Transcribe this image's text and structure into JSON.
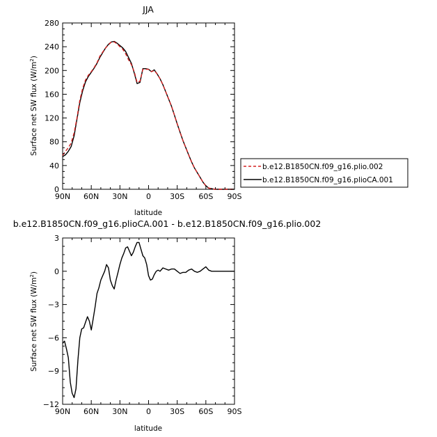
{
  "chart_data": [
    {
      "type": "line",
      "title": "JJA",
      "xlabel": "latitude",
      "ylabel": "Surface net SW flux (W/m",
      "ylabel_sup": "2",
      "ylabel_close": ")",
      "x": [
        90,
        87,
        84,
        81,
        78,
        75,
        72,
        69,
        66,
        63,
        60,
        57,
        54,
        51,
        48,
        45,
        42,
        39,
        36,
        33,
        30,
        27,
        24,
        21,
        18,
        15,
        12,
        9,
        6,
        3,
        0,
        -3,
        -6,
        -9,
        -12,
        -15,
        -18,
        -21,
        -24,
        -27,
        -30,
        -33,
        -36,
        -39,
        -42,
        -45,
        -48,
        -51,
        -54,
        -57,
        -60,
        -63,
        -66,
        -69,
        -72,
        -75,
        -78,
        -81,
        -84,
        -87,
        -90
      ],
      "xlim": [
        90,
        -90
      ],
      "xticks": [
        90,
        60,
        30,
        0,
        -30,
        -60,
        -90
      ],
      "xticklabels": [
        "90N",
        "60N",
        "30N",
        "0",
        "30S",
        "60S",
        "90S"
      ],
      "ylim": [
        0,
        280
      ],
      "yticks": [
        0,
        40,
        80,
        120,
        160,
        200,
        240,
        280
      ],
      "yticklabels": [
        "0",
        "40",
        "80",
        "120",
        "160",
        "200",
        "240",
        "280"
      ],
      "legend_position": "right",
      "series": [
        {
          "name": "b.e12.B1850CN.f09_g16.plio.002",
          "color": "#d42020",
          "dash": "dashed",
          "values": [
            57,
            64,
            70,
            78,
            95,
            120,
            150,
            170,
            184,
            192,
            198,
            205,
            213,
            224,
            231,
            238,
            243,
            248,
            248,
            245,
            240,
            236,
            228,
            218,
            210,
            198,
            180,
            182,
            202,
            202,
            202,
            198,
            200,
            194,
            186,
            176,
            164,
            152,
            140,
            125,
            110,
            96,
            82,
            70,
            58,
            46,
            36,
            28,
            20,
            12,
            6,
            2,
            1,
            0,
            0,
            0,
            0,
            0,
            0,
            0,
            0
          ]
        },
        {
          "name": "b.e12.B1850CN.f09_g16.plioCA.001",
          "color": "#000000",
          "dash": "solid",
          "values": [
            55,
            58,
            64,
            72,
            90,
            118,
            146,
            166,
            181,
            190,
            197,
            204,
            212,
            222,
            230,
            238,
            244,
            248,
            249,
            246,
            242,
            238,
            232,
            222,
            212,
            196,
            178,
            180,
            203,
            203,
            202,
            198,
            201,
            194,
            186,
            176,
            164,
            152,
            140,
            125,
            110,
            96,
            82,
            70,
            58,
            46,
            36,
            28,
            20,
            12,
            6,
            2,
            1,
            0,
            0,
            0,
            0,
            0,
            0,
            0,
            0
          ]
        }
      ]
    },
    {
      "type": "line",
      "title": "b.e12.B1850CN.f09_g16.plioCA.001 - b.e12.B1850CN.f09_g16.plio.002",
      "xlabel": "latitude",
      "ylabel": "Surface net SW flux (W/m",
      "ylabel_sup": "2",
      "ylabel_close": ")",
      "x": [
        90,
        88,
        86,
        84,
        82,
        80,
        78,
        76,
        74,
        72,
        70,
        68,
        66,
        64,
        62,
        60,
        58,
        56,
        54,
        52,
        50,
        48,
        46,
        44,
        42,
        40,
        38,
        36,
        34,
        32,
        30,
        28,
        26,
        24,
        22,
        20,
        18,
        16,
        14,
        12,
        10,
        8,
        6,
        4,
        2,
        0,
        -2,
        -4,
        -6,
        -8,
        -10,
        -12,
        -15,
        -18,
        -21,
        -24,
        -27,
        -30,
        -33,
        -36,
        -39,
        -42,
        -45,
        -48,
        -51,
        -54,
        -57,
        -60,
        -63,
        -66,
        -70,
        -75,
        -80,
        -85,
        -90
      ],
      "xlim": [
        90,
        -90
      ],
      "xticks": [
        90,
        60,
        30,
        0,
        -30,
        -60,
        -90
      ],
      "xticklabels": [
        "90N",
        "60N",
        "30N",
        "0",
        "30S",
        "60S",
        "90S"
      ],
      "ylim": [
        -12,
        3
      ],
      "yticks": [
        -12,
        -9,
        -6,
        -3,
        0,
        3
      ],
      "yticklabels": [
        "−12",
        "−9",
        "−6",
        "−3",
        "0",
        "3"
      ],
      "series": [
        {
          "color": "#000000",
          "values": [
            -6.5,
            -6.3,
            -7.0,
            -7.8,
            -10.0,
            -11.0,
            -11.4,
            -10.6,
            -8.0,
            -6.0,
            -5.2,
            -5.1,
            -4.6,
            -4.1,
            -4.5,
            -5.3,
            -4.3,
            -3.2,
            -2.0,
            -1.5,
            -0.8,
            -0.4,
            0.0,
            0.6,
            0.3,
            -0.8,
            -1.3,
            -1.6,
            -0.8,
            -0.1,
            0.6,
            1.2,
            1.6,
            2.1,
            2.2,
            1.8,
            1.4,
            1.7,
            2.2,
            2.6,
            2.6,
            2.0,
            1.4,
            1.2,
            0.6,
            -0.4,
            -0.8,
            -0.7,
            -0.3,
            0.0,
            0.1,
            0.0,
            0.3,
            0.2,
            0.1,
            0.2,
            0.2,
            0.0,
            -0.2,
            -0.1,
            -0.1,
            0.1,
            0.2,
            0.0,
            -0.1,
            0.0,
            0.2,
            0.4,
            0.1,
            0.0,
            0.0,
            0.0,
            0.0,
            0.0,
            0.0
          ]
        }
      ]
    }
  ]
}
